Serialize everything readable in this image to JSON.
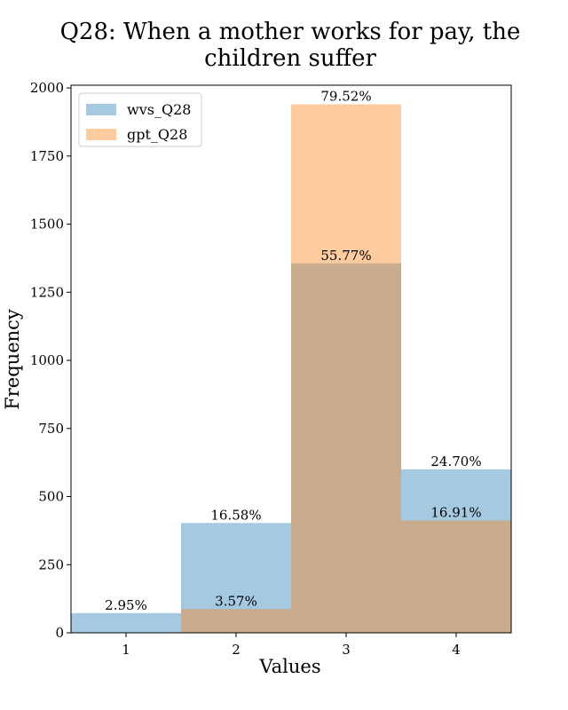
{
  "chart_data": {
    "type": "bar",
    "title_lines": [
      "Q28: When a mother works for pay, the",
      "children suffer"
    ],
    "xlabel": "Values",
    "ylabel": "Frequency",
    "categories": [
      "1",
      "2",
      "3",
      "4"
    ],
    "x_domain": [
      0.5,
      4.5
    ],
    "ylim": [
      0,
      2010
    ],
    "yticks": [
      0,
      250,
      500,
      750,
      1000,
      1250,
      1500,
      1750,
      2000
    ],
    "series": [
      {
        "name": "wvs_Q28",
        "color": "#1f77b4",
        "opacity": 0.4,
        "values": [
          72,
          403,
          1356,
          600
        ],
        "labels": [
          "2.95%",
          "16.58%",
          "55.77%",
          "24.70%"
        ]
      },
      {
        "name": "gpt_Q28",
        "color": "#ff7f0e",
        "opacity": 0.4,
        "values": [
          0,
          87,
          1940,
          412
        ],
        "labels": [
          "",
          "3.57%",
          "79.52%",
          "16.91%"
        ]
      }
    ],
    "legend_position": "top-left"
  }
}
